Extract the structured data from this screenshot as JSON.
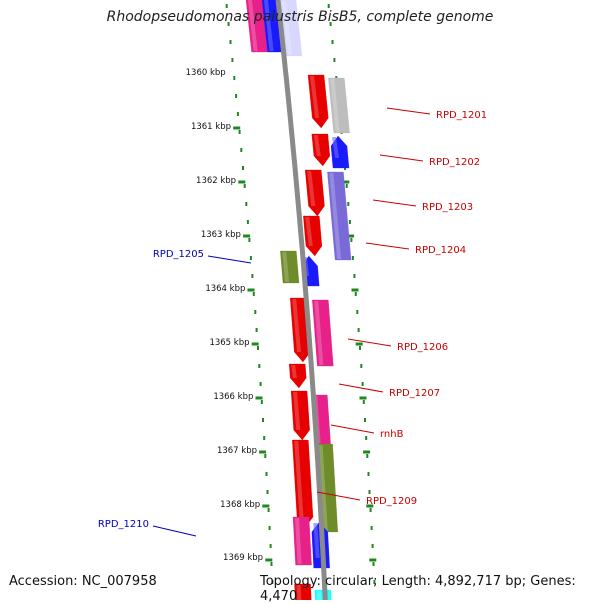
{
  "title": "Rhodopseudomonas palustris BisB5, complete genome",
  "footer": {
    "accession": "Accession: NC_007958",
    "info": "Topology: circular; Length: 4,892,717 bp; Genes: 4,470"
  },
  "colors": {
    "backbone": "#8a8a8a",
    "tick": "#1e8a1e",
    "forward_label": "#cc0000",
    "reverse_label": "#0000bb"
  },
  "scale_labels": [
    "1360 kbp",
    "1361 kbp",
    "1362 kbp",
    "1363 kbp",
    "1364 kbp",
    "1365 kbp",
    "1366 kbp",
    "1367 kbp",
    "1368 kbp",
    "1369 kbp"
  ],
  "genes": [
    {
      "name": "RPD_1201",
      "strand": "forward"
    },
    {
      "name": "RPD_1202",
      "strand": "forward"
    },
    {
      "name": "RPD_1203",
      "strand": "forward"
    },
    {
      "name": "RPD_1204",
      "strand": "forward"
    },
    {
      "name": "RPD_1205",
      "strand": "reverse"
    },
    {
      "name": "RPD_1206",
      "strand": "forward"
    },
    {
      "name": "RPD_1207",
      "strand": "forward"
    },
    {
      "name": "rnhB",
      "strand": "forward"
    },
    {
      "name": "RPD_1209",
      "strand": "forward"
    },
    {
      "name": "RPD_1210",
      "strand": "reverse"
    }
  ]
}
